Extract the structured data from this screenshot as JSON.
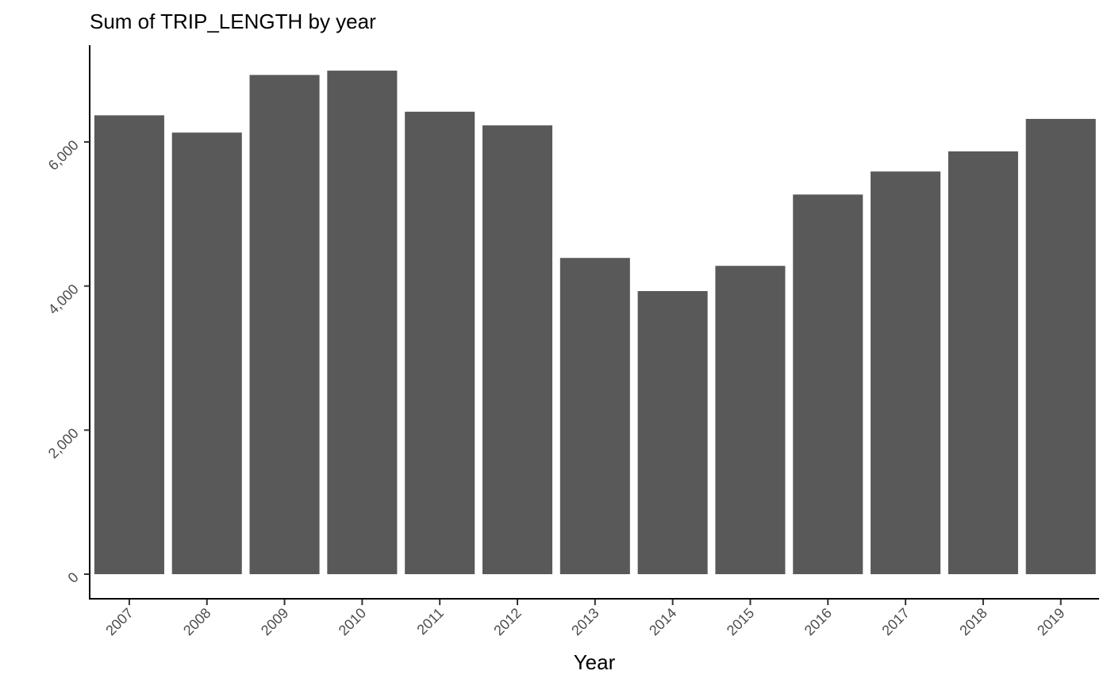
{
  "chart_data": {
    "type": "bar",
    "title": "Sum of TRIP_LENGTH by year",
    "xlabel": "Year",
    "ylabel": "",
    "categories": [
      "2007",
      "2008",
      "2009",
      "2010",
      "2011",
      "2012",
      "2013",
      "2014",
      "2015",
      "2016",
      "2017",
      "2018",
      "2019"
    ],
    "values": [
      6370,
      6130,
      6930,
      6990,
      6420,
      6230,
      4390,
      3930,
      4280,
      5270,
      5590,
      5870,
      6320
    ],
    "ylim": [
      0,
      7300
    ],
    "yticks": [
      0,
      2000,
      4000,
      6000
    ],
    "ytick_labels": [
      "0",
      "2,000",
      "4,000",
      "6,000"
    ],
    "bar_color": "#595959",
    "grid": false,
    "legend": "none"
  }
}
